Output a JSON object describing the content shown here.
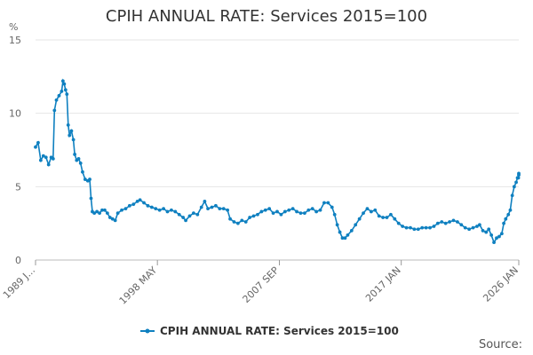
{
  "chart_data": {
    "type": "line",
    "title": "CPIH ANNUAL RATE: Services 2015=100",
    "ylabel": "%",
    "xlabel": "",
    "ylim": [
      0,
      15
    ],
    "yticks": [
      0,
      5,
      10,
      15
    ],
    "xlim": [
      1989.0,
      2026.0
    ],
    "xticks": [
      {
        "label": "1989 J...",
        "x": 1989.0
      },
      {
        "label": "1998 MAY",
        "x": 1998.33
      },
      {
        "label": "2007 SEP",
        "x": 2007.67
      },
      {
        "label": "2017 JAN",
        "x": 2017.0
      },
      {
        "label": "2026 JAN",
        "x": 2026.0
      }
    ],
    "grid": "horizontal",
    "legend_position": "bottom",
    "series": [
      {
        "name": "CPIH ANNUAL RATE: Services 2015=100",
        "color": "#0f80c0",
        "points": [
          [
            1989.0,
            7.7
          ],
          [
            1989.2,
            8.0
          ],
          [
            1989.4,
            6.8
          ],
          [
            1989.6,
            7.1
          ],
          [
            1989.8,
            7.0
          ],
          [
            1990.0,
            6.5
          ],
          [
            1990.2,
            7.0
          ],
          [
            1990.35,
            6.9
          ],
          [
            1990.45,
            10.2
          ],
          [
            1990.6,
            10.9
          ],
          [
            1990.8,
            11.2
          ],
          [
            1991.0,
            11.5
          ],
          [
            1991.1,
            12.2
          ],
          [
            1991.2,
            12.0
          ],
          [
            1991.3,
            11.6
          ],
          [
            1991.4,
            11.3
          ],
          [
            1991.5,
            9.2
          ],
          [
            1991.6,
            8.5
          ],
          [
            1991.75,
            8.8
          ],
          [
            1991.9,
            8.2
          ],
          [
            1992.0,
            7.2
          ],
          [
            1992.15,
            6.8
          ],
          [
            1992.3,
            6.9
          ],
          [
            1992.45,
            6.6
          ],
          [
            1992.6,
            6.0
          ],
          [
            1992.8,
            5.5
          ],
          [
            1993.0,
            5.4
          ],
          [
            1993.15,
            5.5
          ],
          [
            1993.25,
            4.2
          ],
          [
            1993.35,
            3.3
          ],
          [
            1993.5,
            3.2
          ],
          [
            1993.7,
            3.3
          ],
          [
            1993.9,
            3.2
          ],
          [
            1994.1,
            3.4
          ],
          [
            1994.3,
            3.4
          ],
          [
            1994.5,
            3.2
          ],
          [
            1994.7,
            2.9
          ],
          [
            1994.9,
            2.8
          ],
          [
            1995.1,
            2.7
          ],
          [
            1995.3,
            3.2
          ],
          [
            1995.6,
            3.4
          ],
          [
            1995.9,
            3.5
          ],
          [
            1996.2,
            3.7
          ],
          [
            1996.5,
            3.8
          ],
          [
            1996.8,
            4.0
          ],
          [
            1997.0,
            4.1
          ],
          [
            1997.3,
            3.9
          ],
          [
            1997.6,
            3.7
          ],
          [
            1997.9,
            3.6
          ],
          [
            1998.2,
            3.5
          ],
          [
            1998.5,
            3.4
          ],
          [
            1998.8,
            3.5
          ],
          [
            1999.1,
            3.3
          ],
          [
            1999.4,
            3.4
          ],
          [
            1999.7,
            3.3
          ],
          [
            2000.0,
            3.1
          ],
          [
            2000.3,
            2.9
          ],
          [
            2000.5,
            2.7
          ],
          [
            2000.8,
            3.0
          ],
          [
            2001.1,
            3.2
          ],
          [
            2001.4,
            3.1
          ],
          [
            2001.7,
            3.6
          ],
          [
            2001.95,
            4.0
          ],
          [
            2002.2,
            3.5
          ],
          [
            2002.5,
            3.6
          ],
          [
            2002.8,
            3.7
          ],
          [
            2003.1,
            3.5
          ],
          [
            2003.4,
            3.5
          ],
          [
            2003.7,
            3.4
          ],
          [
            2003.9,
            2.8
          ],
          [
            2004.2,
            2.6
          ],
          [
            2004.5,
            2.5
          ],
          [
            2004.8,
            2.7
          ],
          [
            2005.1,
            2.6
          ],
          [
            2005.4,
            2.9
          ],
          [
            2005.7,
            3.0
          ],
          [
            2006.0,
            3.1
          ],
          [
            2006.3,
            3.3
          ],
          [
            2006.6,
            3.4
          ],
          [
            2006.9,
            3.5
          ],
          [
            2007.2,
            3.2
          ],
          [
            2007.5,
            3.3
          ],
          [
            2007.8,
            3.1
          ],
          [
            2008.1,
            3.3
          ],
          [
            2008.4,
            3.4
          ],
          [
            2008.7,
            3.5
          ],
          [
            2009.0,
            3.3
          ],
          [
            2009.3,
            3.2
          ],
          [
            2009.6,
            3.2
          ],
          [
            2009.9,
            3.4
          ],
          [
            2010.2,
            3.5
          ],
          [
            2010.5,
            3.3
          ],
          [
            2010.8,
            3.4
          ],
          [
            2011.1,
            3.9
          ],
          [
            2011.4,
            3.9
          ],
          [
            2011.7,
            3.6
          ],
          [
            2011.9,
            3.1
          ],
          [
            2012.1,
            2.4
          ],
          [
            2012.3,
            1.9
          ],
          [
            2012.5,
            1.5
          ],
          [
            2012.7,
            1.5
          ],
          [
            2012.9,
            1.7
          ],
          [
            2013.2,
            2.0
          ],
          [
            2013.5,
            2.4
          ],
          [
            2013.8,
            2.8
          ],
          [
            2014.1,
            3.2
          ],
          [
            2014.4,
            3.5
          ],
          [
            2014.7,
            3.3
          ],
          [
            2015.0,
            3.4
          ],
          [
            2015.3,
            3.0
          ],
          [
            2015.6,
            2.9
          ],
          [
            2015.9,
            2.9
          ],
          [
            2016.2,
            3.1
          ],
          [
            2016.5,
            2.8
          ],
          [
            2016.8,
            2.5
          ],
          [
            2017.1,
            2.3
          ],
          [
            2017.4,
            2.2
          ],
          [
            2017.7,
            2.2
          ],
          [
            2018.0,
            2.1
          ],
          [
            2018.3,
            2.1
          ],
          [
            2018.6,
            2.2
          ],
          [
            2018.9,
            2.2
          ],
          [
            2019.2,
            2.2
          ],
          [
            2019.5,
            2.3
          ],
          [
            2019.8,
            2.5
          ],
          [
            2020.1,
            2.6
          ],
          [
            2020.4,
            2.5
          ],
          [
            2020.7,
            2.6
          ],
          [
            2021.0,
            2.7
          ],
          [
            2021.3,
            2.6
          ],
          [
            2021.6,
            2.4
          ],
          [
            2021.9,
            2.2
          ],
          [
            2022.2,
            2.1
          ],
          [
            2022.5,
            2.2
          ],
          [
            2022.8,
            2.3
          ],
          [
            2023.0,
            2.4
          ],
          [
            2023.25,
            2.0
          ],
          [
            2023.5,
            1.9
          ],
          [
            2023.7,
            2.1
          ],
          [
            2023.9,
            1.7
          ],
          [
            2024.1,
            1.2
          ],
          [
            2024.3,
            1.5
          ],
          [
            2024.5,
            1.6
          ],
          [
            2024.7,
            1.8
          ],
          [
            2024.85,
            2.5
          ],
          [
            2025.0,
            2.8
          ],
          [
            2025.2,
            3.1
          ],
          [
            2025.35,
            3.4
          ],
          [
            2025.5,
            4.4
          ],
          [
            2025.65,
            5.0
          ],
          [
            2025.8,
            5.3
          ],
          [
            2025.9,
            5.6
          ],
          [
            2025.97,
            5.6
          ],
          [
            2026.0,
            5.8
          ],
          [
            2026.0,
            5.9
          ]
        ]
      }
    ]
  },
  "source_label": "Source:"
}
